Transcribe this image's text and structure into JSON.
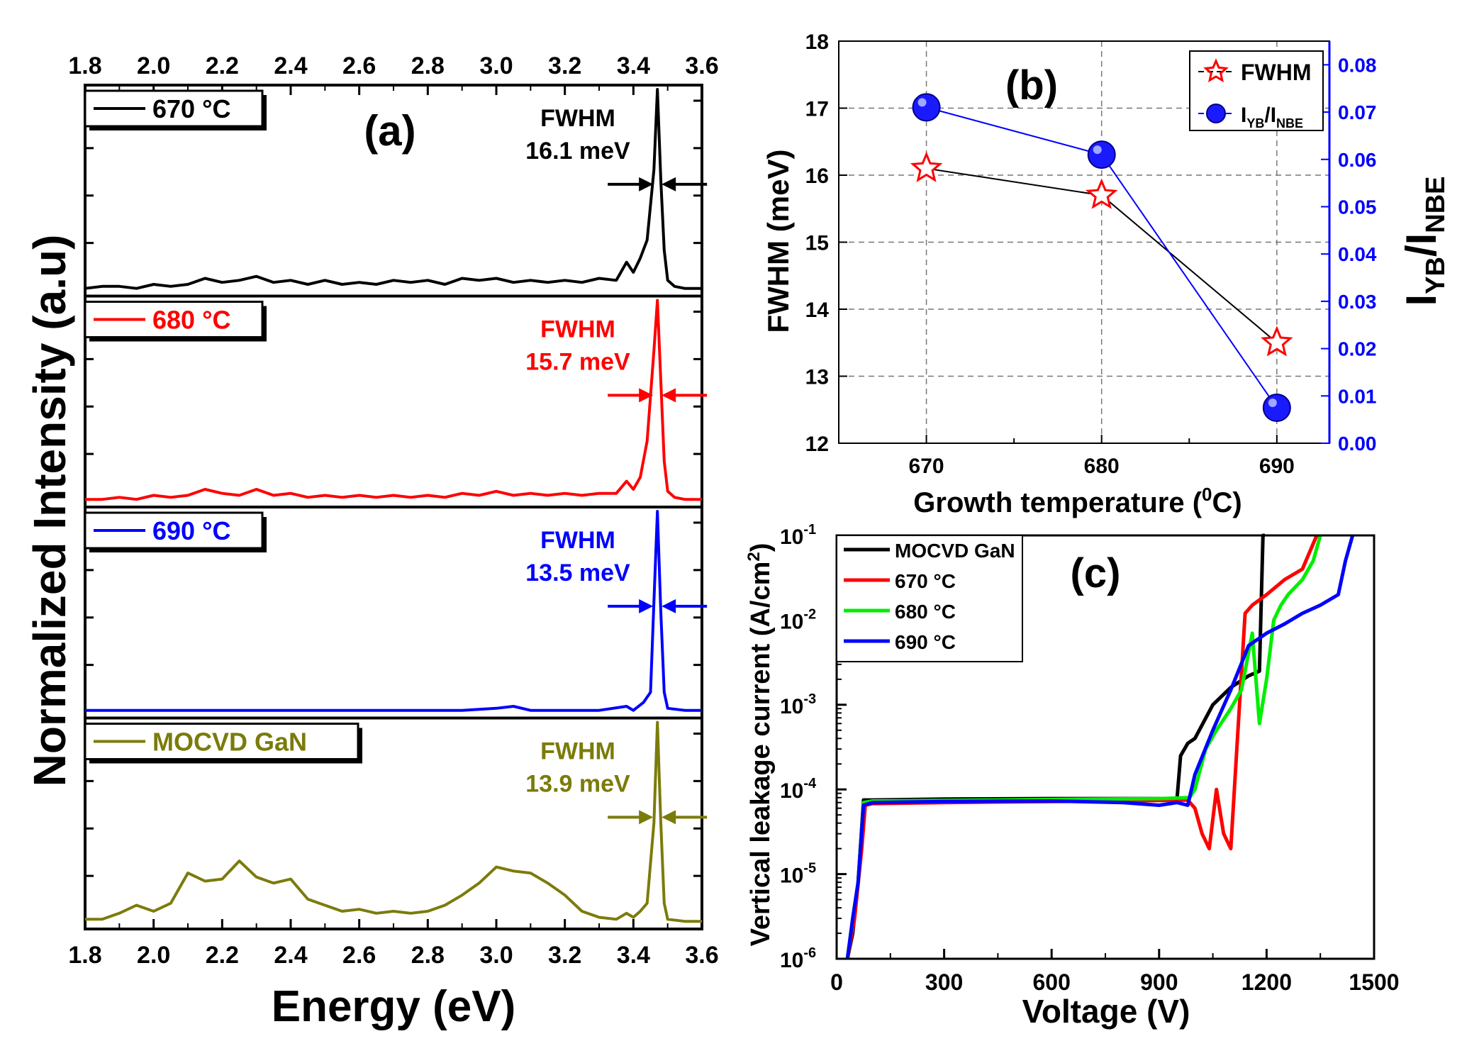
{
  "chart_data": [
    {
      "type": "line",
      "panel_label": "(a)",
      "xlabel": "Energy (eV)",
      "ylabel": "Normalized Intensity (a.u)",
      "xlim": [
        1.8,
        3.6
      ],
      "xticks": [
        "1.8",
        "2.0",
        "2.2",
        "2.4",
        "2.6",
        "2.8",
        "3.0",
        "3.2",
        "3.4",
        "3.6"
      ],
      "series": [
        {
          "name": "670 °C",
          "color": "#000000",
          "fwhm_label": "FWHM",
          "fwhm_value": "16.1 meV",
          "x": [
            1.8,
            1.85,
            1.9,
            1.95,
            2.0,
            2.05,
            2.1,
            2.15,
            2.2,
            2.25,
            2.3,
            2.35,
            2.4,
            2.45,
            2.5,
            2.55,
            2.6,
            2.65,
            2.7,
            2.75,
            2.8,
            2.85,
            2.9,
            2.95,
            3.0,
            3.05,
            3.1,
            3.15,
            3.2,
            3.25,
            3.3,
            3.35,
            3.38,
            3.4,
            3.42,
            3.44,
            3.46,
            3.47,
            3.48,
            3.49,
            3.5,
            3.52,
            3.55,
            3.6
          ],
          "y": [
            0.01,
            0.02,
            0.02,
            0.01,
            0.03,
            0.02,
            0.03,
            0.06,
            0.04,
            0.05,
            0.07,
            0.04,
            0.05,
            0.03,
            0.05,
            0.03,
            0.04,
            0.03,
            0.05,
            0.04,
            0.05,
            0.03,
            0.06,
            0.05,
            0.06,
            0.04,
            0.05,
            0.04,
            0.05,
            0.04,
            0.06,
            0.05,
            0.14,
            0.09,
            0.16,
            0.25,
            0.6,
            1.0,
            0.55,
            0.2,
            0.05,
            0.02,
            0.01,
            0.01
          ]
        },
        {
          "name": "680 °C",
          "color": "#ff0000",
          "fwhm_label": "FWHM",
          "fwhm_value": "15.7 meV",
          "x": [
            1.8,
            1.85,
            1.9,
            1.95,
            2.0,
            2.05,
            2.1,
            2.15,
            2.2,
            2.25,
            2.3,
            2.35,
            2.4,
            2.45,
            2.5,
            2.55,
            2.6,
            2.65,
            2.7,
            2.75,
            2.8,
            2.85,
            2.9,
            2.95,
            3.0,
            3.05,
            3.1,
            3.15,
            3.2,
            3.25,
            3.3,
            3.35,
            3.38,
            3.4,
            3.42,
            3.44,
            3.46,
            3.47,
            3.48,
            3.49,
            3.5,
            3.52,
            3.55,
            3.6
          ],
          "y": [
            0.01,
            0.01,
            0.02,
            0.01,
            0.03,
            0.02,
            0.03,
            0.06,
            0.04,
            0.03,
            0.06,
            0.03,
            0.04,
            0.02,
            0.03,
            0.02,
            0.03,
            0.02,
            0.03,
            0.02,
            0.03,
            0.02,
            0.04,
            0.03,
            0.05,
            0.03,
            0.04,
            0.03,
            0.04,
            0.03,
            0.04,
            0.04,
            0.1,
            0.06,
            0.12,
            0.3,
            0.75,
            1.0,
            0.6,
            0.2,
            0.05,
            0.02,
            0.01,
            0.01
          ]
        },
        {
          "name": "690 °C",
          "color": "#0000ff",
          "fwhm_label": "FWHM",
          "fwhm_value": "13.5 meV",
          "x": [
            1.8,
            1.9,
            2.0,
            2.1,
            2.2,
            2.3,
            2.4,
            2.5,
            2.6,
            2.7,
            2.8,
            2.9,
            3.0,
            3.05,
            3.1,
            3.2,
            3.3,
            3.38,
            3.4,
            3.43,
            3.45,
            3.46,
            3.47,
            3.48,
            3.49,
            3.5,
            3.55,
            3.6
          ],
          "y": [
            0.01,
            0.01,
            0.01,
            0.01,
            0.01,
            0.01,
            0.01,
            0.01,
            0.01,
            0.01,
            0.01,
            0.01,
            0.02,
            0.03,
            0.01,
            0.01,
            0.01,
            0.03,
            0.01,
            0.05,
            0.1,
            0.55,
            1.0,
            0.5,
            0.1,
            0.02,
            0.01,
            0.01
          ]
        },
        {
          "name": "MOCVD GaN",
          "color": "#7b7b0b",
          "fwhm_label": "FWHM",
          "fwhm_value": "13.9 meV",
          "x": [
            1.8,
            1.85,
            1.9,
            1.95,
            2.0,
            2.05,
            2.1,
            2.15,
            2.2,
            2.25,
            2.3,
            2.35,
            2.4,
            2.45,
            2.5,
            2.55,
            2.6,
            2.65,
            2.7,
            2.75,
            2.8,
            2.85,
            2.9,
            2.95,
            3.0,
            3.05,
            3.1,
            3.15,
            3.2,
            3.25,
            3.3,
            3.35,
            3.38,
            3.4,
            3.42,
            3.44,
            3.46,
            3.47,
            3.48,
            3.49,
            3.5,
            3.55,
            3.6
          ],
          "y": [
            0.02,
            0.02,
            0.05,
            0.09,
            0.06,
            0.1,
            0.25,
            0.21,
            0.22,
            0.31,
            0.23,
            0.2,
            0.22,
            0.12,
            0.09,
            0.06,
            0.07,
            0.05,
            0.06,
            0.05,
            0.06,
            0.09,
            0.14,
            0.2,
            0.28,
            0.26,
            0.25,
            0.2,
            0.14,
            0.06,
            0.03,
            0.02,
            0.05,
            0.03,
            0.06,
            0.1,
            0.5,
            1.0,
            0.5,
            0.1,
            0.02,
            0.01,
            0.01
          ]
        }
      ]
    },
    {
      "type": "line",
      "panel_label": "(b)",
      "xlabel_main": "Growth temperature (",
      "xlabel_sup": "0",
      "xlabel_end": "C)",
      "ylabel": "FWHM (meV)",
      "y2label_main": "I",
      "y2label_sub1": "YB",
      "y2label_mid": "/I",
      "y2label_sub2": "NBE",
      "x": [
        670,
        680,
        690
      ],
      "xticks": [
        "670",
        "680",
        "690"
      ],
      "xlim": [
        665,
        693
      ],
      "ylim": [
        12,
        18
      ],
      "yticks": [
        "12",
        "13",
        "14",
        "15",
        "16",
        "17",
        "18"
      ],
      "y2lim": [
        0,
        0.085
      ],
      "y2ticks": [
        "0.00",
        "0.01",
        "0.02",
        "0.03",
        "0.04",
        "0.05",
        "0.06",
        "0.07",
        "0.08"
      ],
      "series": [
        {
          "name": "FWHM",
          "axis": "left",
          "color": "#ff0000",
          "values": [
            16.1,
            15.7,
            13.5
          ]
        },
        {
          "name": "I_YB/I_NBE",
          "axis": "right",
          "color": "#0000ff",
          "values": [
            0.071,
            0.061,
            0.0075
          ]
        }
      ],
      "legend": [
        {
          "label": "FWHM"
        },
        {
          "label_main": "I",
          "label_sub1": "YB",
          "label_mid": "/I",
          "label_sub2": "NBE"
        }
      ]
    },
    {
      "type": "line",
      "panel_label": "(c)",
      "xlabel": "Voltage (V)",
      "ylabel_main": "Vertical leakage current (A/cm",
      "ylabel_sup": "2",
      "ylabel_end": ")",
      "xlim": [
        0,
        1500
      ],
      "xticks": [
        "0",
        "300",
        "600",
        "900",
        "1200",
        "1500"
      ],
      "yscale": "log",
      "ylim_exp": [
        -6,
        -1
      ],
      "ytick_exps": [
        "-6",
        "-5",
        "-4",
        "-3",
        "-2",
        "-1"
      ],
      "ytick_base": "10",
      "series": [
        {
          "name": "MOCVD GaN",
          "color": "#000000",
          "x": [
            30,
            45,
            60,
            75,
            100,
            300,
            600,
            900,
            950,
            960,
            980,
            1000,
            1050,
            1100,
            1150,
            1180,
            1190,
            1195
          ],
          "y": [
            1e-06,
            2e-06,
            8e-06,
            7.5e-05,
            7.5e-05,
            7.7e-05,
            7.8e-05,
            7.8e-05,
            7.8e-05,
            0.00025,
            0.00035,
            0.0004,
            0.001,
            0.0016,
            0.0022,
            0.0025,
            0.1,
            0.12
          ]
        },
        {
          "name": "670 °C",
          "color": "#ff0000",
          "x": [
            30,
            50,
            70,
            80,
            100,
            300,
            600,
            900,
            980,
            1000,
            1020,
            1040,
            1060,
            1080,
            1100,
            1120,
            1140,
            1160,
            1200,
            1250,
            1300,
            1340
          ],
          "y": [
            1e-06,
            3e-06,
            2e-05,
            6.5e-05,
            6.8e-05,
            7e-05,
            7.2e-05,
            7.4e-05,
            7.5e-05,
            6e-05,
            3e-05,
            2e-05,
            0.0001,
            3e-05,
            2e-05,
            0.0005,
            0.012,
            0.015,
            0.02,
            0.03,
            0.04,
            0.1
          ]
        },
        {
          "name": "680 °C",
          "color": "#00ee00",
          "x": [
            30,
            45,
            60,
            75,
            100,
            300,
            600,
            900,
            985,
            1000,
            1030,
            1060,
            1100,
            1130,
            1160,
            1180,
            1200,
            1220,
            1240,
            1260,
            1300,
            1330,
            1350
          ],
          "y": [
            1e-06,
            3e-06,
            8e-06,
            7e-05,
            7.3e-05,
            7.4e-05,
            7.6e-05,
            7.8e-05,
            8e-05,
            0.0001,
            0.0003,
            0.0005,
            0.0009,
            0.0015,
            0.007,
            0.0006,
            0.002,
            0.01,
            0.015,
            0.02,
            0.03,
            0.05,
            0.1
          ]
        },
        {
          "name": "690 °C",
          "color": "#0000ff",
          "x": [
            30,
            45,
            60,
            75,
            100,
            300,
            600,
            800,
            900,
            950,
            980,
            1000,
            1050,
            1100,
            1150,
            1200,
            1250,
            1300,
            1350,
            1400,
            1420,
            1440
          ],
          "y": [
            1e-06,
            3e-06,
            8e-06,
            6.5e-05,
            7e-05,
            7.2e-05,
            7.3e-05,
            7e-05,
            6.5e-05,
            7e-05,
            6.5e-05,
            0.00015,
            0.0005,
            0.0015,
            0.005,
            0.007,
            0.009,
            0.012,
            0.015,
            0.02,
            0.05,
            0.1
          ]
        }
      ]
    }
  ]
}
